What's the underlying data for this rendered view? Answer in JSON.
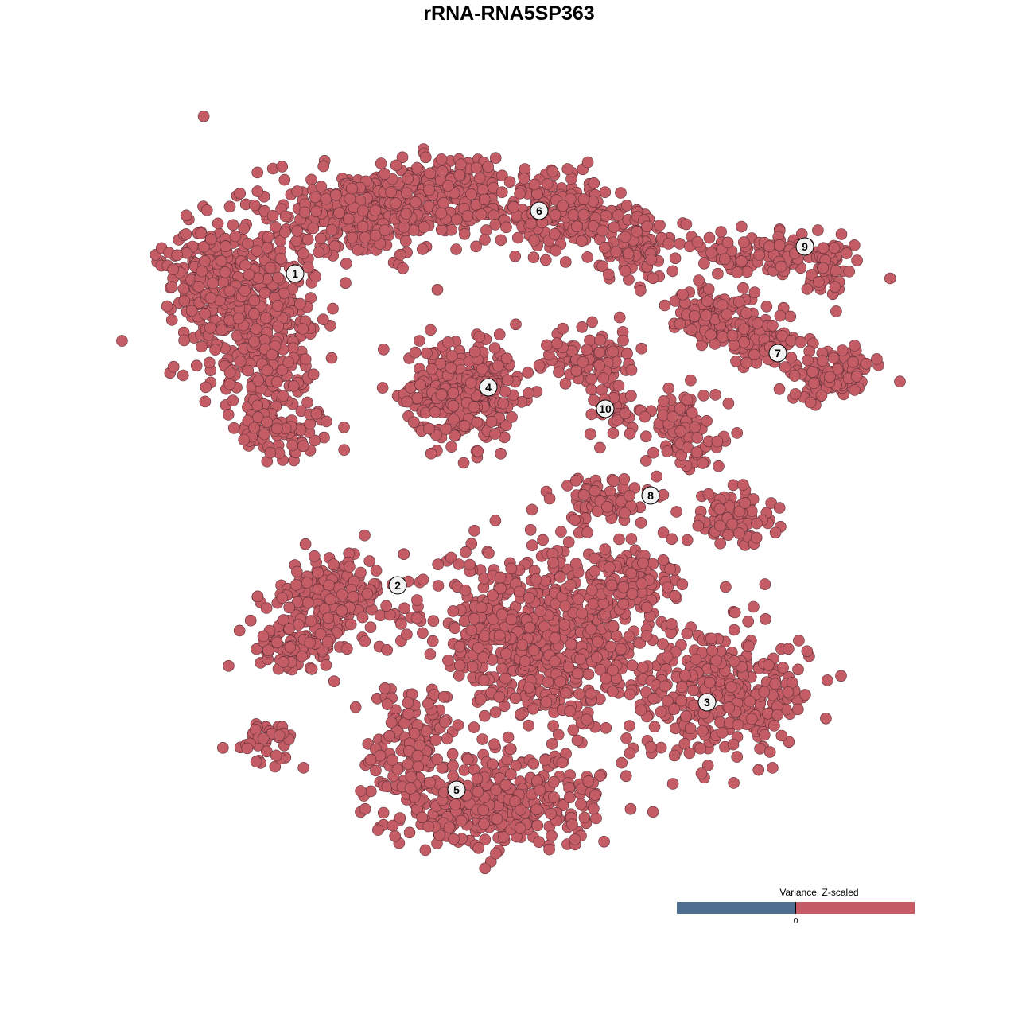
{
  "chart_data": {
    "type": "scatter",
    "title": "rRNA-RNA5SP363",
    "xlabel": "",
    "ylabel": "",
    "grid": false,
    "axes_visible": false,
    "point_color": "#c45c66",
    "point_stroke": "#5b3036",
    "cluster_labels": [
      "1",
      "2",
      "3",
      "4",
      "5",
      "6",
      "7",
      "8",
      "9",
      "10"
    ],
    "legend": {
      "title": "Variance, Z-scaled",
      "tick_label": "0",
      "low_color": "#4f6d8f",
      "high_color": "#c45c66",
      "placement": "bottom-right"
    }
  }
}
